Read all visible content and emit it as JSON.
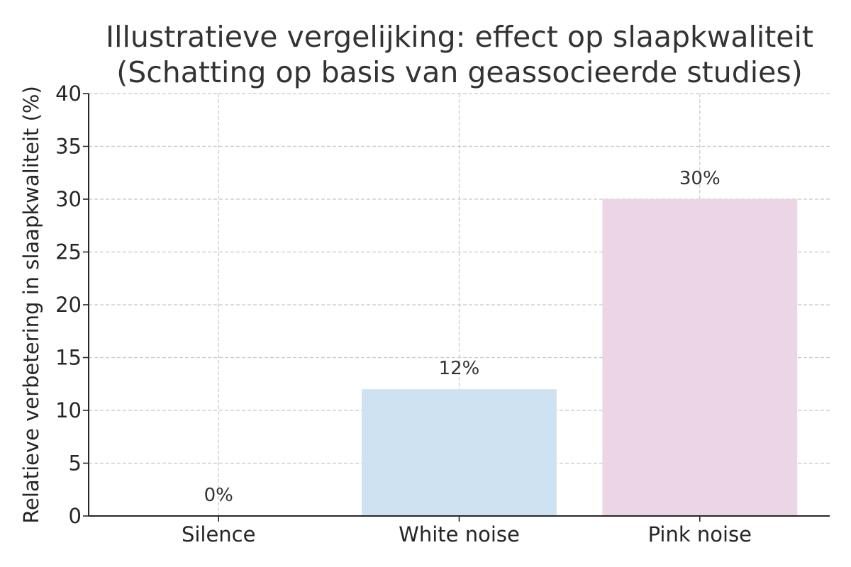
{
  "chart_data": {
    "type": "bar",
    "title": "Illustratieve vergelijking: effect op slaapkwaliteit",
    "subtitle": "(Schatting op basis van geassocieerde studies)",
    "xlabel": "",
    "ylabel": "Relatieve verbetering in slaapkwaliteit (%)",
    "categories": [
      "Silence",
      "White noise",
      "Pink noise"
    ],
    "values": [
      0,
      12,
      30
    ],
    "value_labels": [
      "0%",
      "12%",
      "30%"
    ],
    "bar_colors": [
      "#e5e5e5",
      "#cfe2f1",
      "#ecd5e5"
    ],
    "ylim": [
      0,
      40
    ],
    "yticks": [
      0,
      5,
      10,
      15,
      20,
      25,
      30,
      35,
      40
    ],
    "ytick_labels": [
      "0",
      "5",
      "10",
      "15",
      "20",
      "25",
      "30",
      "35",
      "40"
    ],
    "grid": true,
    "legend": "none"
  }
}
